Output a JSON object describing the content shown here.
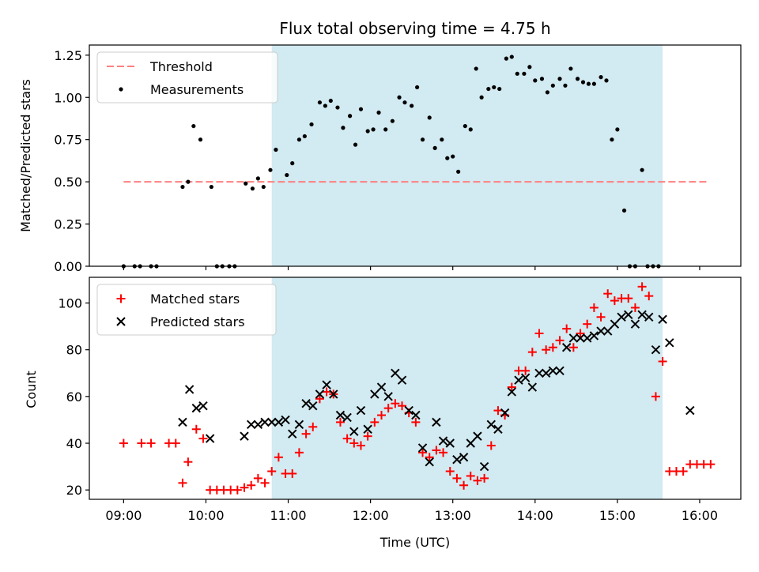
{
  "chart_data": [
    {
      "type": "scatter",
      "title": "Flux total observing time = 4.75 h",
      "xlabel": "",
      "ylabel": "Matched/Predicted stars",
      "xlim": [
        "08:35",
        "16:30"
      ],
      "ylim": [
        0,
        1.31
      ],
      "yticks": [
        0.0,
        0.25,
        0.5,
        0.75,
        1.0,
        1.25
      ],
      "ytick_labels": [
        "0.00",
        "0.25",
        "0.50",
        "0.75",
        "1.00",
        "1.25"
      ],
      "xticks": [
        "09:00",
        "10:00",
        "11:00",
        "12:00",
        "13:00",
        "14:00",
        "15:00",
        "16:00"
      ],
      "xtick_labels_visible": false,
      "observing_window": [
        "10:48",
        "15:33"
      ],
      "observing_window_color": "#add8e6",
      "legend": {
        "placement": "top-left",
        "entries": [
          "Threshold",
          "Measurements"
        ]
      },
      "threshold": {
        "name": "Threshold",
        "y": 0.5,
        "x": [
          "09:00",
          "16:07"
        ],
        "color": "#ff8080",
        "style": "dashed"
      },
      "series": [
        {
          "name": "Measurements",
          "marker": "dot",
          "color": "#000000",
          "points": [
            [
              "09:00",
              0.0
            ],
            [
              "09:08",
              0.0
            ],
            [
              "09:12",
              0.0
            ],
            [
              "09:20",
              0.0
            ],
            [
              "09:24",
              0.0
            ],
            [
              "09:43",
              0.47
            ],
            [
              "09:47",
              0.5
            ],
            [
              "09:51",
              0.83
            ],
            [
              "09:56",
              0.75
            ],
            [
              "10:04",
              0.47
            ],
            [
              "10:08",
              0.0
            ],
            [
              "10:12",
              0.0
            ],
            [
              "10:17",
              0.0
            ],
            [
              "10:21",
              0.0
            ],
            [
              "10:29",
              0.49
            ],
            [
              "10:34",
              0.46
            ],
            [
              "10:38",
              0.52
            ],
            [
              "10:42",
              0.47
            ],
            [
              "10:47",
              0.57
            ],
            [
              "10:51",
              0.69
            ],
            [
              "10:59",
              0.54
            ],
            [
              "11:03",
              0.61
            ],
            [
              "11:08",
              0.75
            ],
            [
              "11:12",
              0.77
            ],
            [
              "11:17",
              0.84
            ],
            [
              "11:23",
              0.97
            ],
            [
              "11:27",
              0.95
            ],
            [
              "11:31",
              0.98
            ],
            [
              "11:36",
              0.94
            ],
            [
              "11:40",
              0.82
            ],
            [
              "11:45",
              0.89
            ],
            [
              "11:49",
              0.72
            ],
            [
              "11:53",
              0.93
            ],
            [
              "11:58",
              0.8
            ],
            [
              "12:02",
              0.81
            ],
            [
              "12:06",
              0.91
            ],
            [
              "12:11",
              0.81
            ],
            [
              "12:16",
              0.86
            ],
            [
              "12:21",
              1.0
            ],
            [
              "12:25",
              0.97
            ],
            [
              "12:30",
              0.95
            ],
            [
              "12:34",
              1.06
            ],
            [
              "12:38",
              0.75
            ],
            [
              "12:43",
              0.88
            ],
            [
              "12:47",
              0.7
            ],
            [
              "12:52",
              0.75
            ],
            [
              "12:56",
              0.64
            ],
            [
              "13:00",
              0.65
            ],
            [
              "13:04",
              0.56
            ],
            [
              "13:09",
              0.83
            ],
            [
              "13:13",
              0.81
            ],
            [
              "13:17",
              1.17
            ],
            [
              "13:21",
              1.0
            ],
            [
              "13:26",
              1.05
            ],
            [
              "13:30",
              1.06
            ],
            [
              "13:34",
              1.05
            ],
            [
              "13:39",
              1.23
            ],
            [
              "13:43",
              1.24
            ],
            [
              "13:47",
              1.14
            ],
            [
              "13:52",
              1.14
            ],
            [
              "13:56",
              1.18
            ],
            [
              "14:00",
              1.1
            ],
            [
              "14:05",
              1.11
            ],
            [
              "14:09",
              1.03
            ],
            [
              "14:13",
              1.07
            ],
            [
              "14:18",
              1.11
            ],
            [
              "14:22",
              1.07
            ],
            [
              "14:26",
              1.17
            ],
            [
              "14:31",
              1.11
            ],
            [
              "14:35",
              1.09
            ],
            [
              "14:39",
              1.08
            ],
            [
              "14:43",
              1.08
            ],
            [
              "14:48",
              1.12
            ],
            [
              "14:52",
              1.1
            ],
            [
              "14:56",
              0.75
            ],
            [
              "15:00",
              0.81
            ],
            [
              "15:05",
              0.33
            ],
            [
              "15:09",
              0.0
            ],
            [
              "15:13",
              0.0
            ],
            [
              "15:18",
              0.57
            ],
            [
              "15:22",
              0.0
            ],
            [
              "15:26",
              0.0
            ],
            [
              "15:30",
              0.0
            ]
          ]
        }
      ]
    },
    {
      "type": "scatter",
      "title": "",
      "xlabel": "Time (UTC)",
      "ylabel": "Count",
      "xlim": [
        "08:35",
        "16:30"
      ],
      "ylim": [
        16,
        111
      ],
      "yticks": [
        20,
        40,
        60,
        80,
        100
      ],
      "ytick_labels": [
        "20",
        "40",
        "60",
        "80",
        "100"
      ],
      "xticks": [
        "09:00",
        "10:00",
        "11:00",
        "12:00",
        "13:00",
        "14:00",
        "15:00",
        "16:00"
      ],
      "xtick_labels": [
        "09:00",
        "10:00",
        "11:00",
        "12:00",
        "13:00",
        "14:00",
        "15:00",
        "16:00"
      ],
      "observing_window": [
        "10:48",
        "15:33"
      ],
      "observing_window_color": "#add8e6",
      "legend": {
        "placement": "top-left",
        "entries": [
          "Matched stars",
          "Predicted stars"
        ]
      },
      "series": [
        {
          "name": "Matched stars",
          "marker": "plus",
          "color": "#ff0000",
          "points": [
            [
              "09:00",
              40
            ],
            [
              "09:13",
              40
            ],
            [
              "09:20",
              40
            ],
            [
              "09:33",
              40
            ],
            [
              "09:38",
              40
            ],
            [
              "09:43",
              23
            ],
            [
              "09:47",
              32
            ],
            [
              "09:53",
              46
            ],
            [
              "09:58",
              42
            ],
            [
              "10:03",
              20
            ],
            [
              "10:08",
              20
            ],
            [
              "10:13",
              20
            ],
            [
              "10:18",
              20
            ],
            [
              "10:23",
              20
            ],
            [
              "10:28",
              21
            ],
            [
              "10:33",
              22
            ],
            [
              "10:38",
              25
            ],
            [
              "10:43",
              23
            ],
            [
              "10:48",
              28
            ],
            [
              "10:53",
              34
            ],
            [
              "10:58",
              27
            ],
            [
              "11:03",
              27
            ],
            [
              "11:08",
              36
            ],
            [
              "11:13",
              44
            ],
            [
              "11:18",
              47
            ],
            [
              "11:23",
              59
            ],
            [
              "11:28",
              62
            ],
            [
              "11:33",
              61
            ],
            [
              "11:38",
              49
            ],
            [
              "11:43",
              42
            ],
            [
              "11:48",
              40
            ],
            [
              "11:53",
              39
            ],
            [
              "11:58",
              43
            ],
            [
              "12:03",
              49
            ],
            [
              "12:08",
              52
            ],
            [
              "12:13",
              55
            ],
            [
              "12:18",
              57
            ],
            [
              "12:23",
              56
            ],
            [
              "12:28",
              53
            ],
            [
              "12:33",
              49
            ],
            [
              "12:38",
              36
            ],
            [
              "12:43",
              34
            ],
            [
              "12:48",
              37
            ],
            [
              "12:53",
              36
            ],
            [
              "12:58",
              28
            ],
            [
              "13:03",
              25
            ],
            [
              "13:08",
              22
            ],
            [
              "13:13",
              26
            ],
            [
              "13:18",
              24
            ],
            [
              "13:23",
              25
            ],
            [
              "13:28",
              39
            ],
            [
              "13:33",
              54
            ],
            [
              "13:38",
              52
            ],
            [
              "13:43",
              64
            ],
            [
              "13:48",
              71
            ],
            [
              "13:53",
              71
            ],
            [
              "13:58",
              79
            ],
            [
              "14:03",
              87
            ],
            [
              "14:08",
              80
            ],
            [
              "14:13",
              81
            ],
            [
              "14:18",
              84
            ],
            [
              "14:23",
              89
            ],
            [
              "14:28",
              81
            ],
            [
              "14:33",
              87
            ],
            [
              "14:38",
              91
            ],
            [
              "14:43",
              98
            ],
            [
              "14:48",
              94
            ],
            [
              "14:53",
              104
            ],
            [
              "14:58",
              101
            ],
            [
              "15:03",
              102
            ],
            [
              "15:08",
              102
            ],
            [
              "15:13",
              98
            ],
            [
              "15:18",
              107
            ],
            [
              "15:23",
              103
            ],
            [
              "15:28",
              60
            ],
            [
              "15:33",
              75
            ],
            [
              "15:38",
              28
            ],
            [
              "15:43",
              28
            ],
            [
              "15:48",
              28
            ],
            [
              "15:53",
              31
            ],
            [
              "15:58",
              31
            ],
            [
              "16:03",
              31
            ],
            [
              "16:08",
              31
            ]
          ]
        },
        {
          "name": "Predicted stars",
          "marker": "x",
          "color": "#000000",
          "points": [
            [
              "09:43",
              49
            ],
            [
              "09:48",
              63
            ],
            [
              "09:53",
              55
            ],
            [
              "09:58",
              56
            ],
            [
              "10:03",
              42
            ],
            [
              "10:28",
              43
            ],
            [
              "10:33",
              48
            ],
            [
              "10:38",
              48
            ],
            [
              "10:43",
              49
            ],
            [
              "10:48",
              49
            ],
            [
              "10:53",
              49
            ],
            [
              "10:58",
              50
            ],
            [
              "11:03",
              44
            ],
            [
              "11:08",
              48
            ],
            [
              "11:13",
              57
            ],
            [
              "11:18",
              56
            ],
            [
              "11:23",
              61
            ],
            [
              "11:28",
              65
            ],
            [
              "11:33",
              61
            ],
            [
              "11:38",
              52
            ],
            [
              "11:43",
              51
            ],
            [
              "11:48",
              45
            ],
            [
              "11:53",
              54
            ],
            [
              "11:58",
              46
            ],
            [
              "12:03",
              61
            ],
            [
              "12:08",
              64
            ],
            [
              "12:13",
              60
            ],
            [
              "12:18",
              70
            ],
            [
              "12:23",
              67
            ],
            [
              "12:28",
              54
            ],
            [
              "12:33",
              52
            ],
            [
              "12:38",
              38
            ],
            [
              "12:43",
              32
            ],
            [
              "12:48",
              49
            ],
            [
              "12:53",
              41
            ],
            [
              "12:58",
              40
            ],
            [
              "13:03",
              33
            ],
            [
              "13:08",
              34
            ],
            [
              "13:13",
              40
            ],
            [
              "13:18",
              43
            ],
            [
              "13:23",
              30
            ],
            [
              "13:28",
              48
            ],
            [
              "13:33",
              46
            ],
            [
              "13:38",
              53
            ],
            [
              "13:43",
              62
            ],
            [
              "13:48",
              67
            ],
            [
              "13:53",
              68
            ],
            [
              "13:58",
              64
            ],
            [
              "14:03",
              70
            ],
            [
              "14:08",
              70
            ],
            [
              "14:13",
              71
            ],
            [
              "14:18",
              71
            ],
            [
              "14:23",
              81
            ],
            [
              "14:28",
              85
            ],
            [
              "14:33",
              85
            ],
            [
              "14:38",
              85
            ],
            [
              "14:43",
              86
            ],
            [
              "14:48",
              88
            ],
            [
              "14:53",
              88
            ],
            [
              "14:58",
              91
            ],
            [
              "15:03",
              94
            ],
            [
              "15:08",
              95
            ],
            [
              "15:13",
              91
            ],
            [
              "15:18",
              95
            ],
            [
              "15:23",
              94
            ],
            [
              "15:28",
              80
            ],
            [
              "15:33",
              93
            ],
            [
              "15:38",
              83
            ],
            [
              "15:53",
              54
            ]
          ]
        }
      ]
    }
  ]
}
